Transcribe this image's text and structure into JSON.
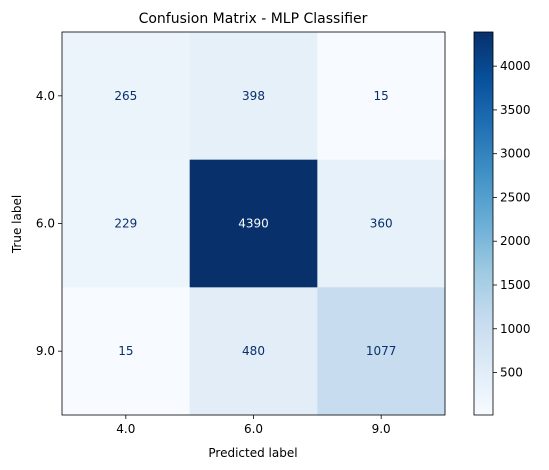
{
  "chart_data": {
    "type": "heatmap",
    "title": "Confusion Matrix - MLP Classifier",
    "xlabel": "Predicted label",
    "ylabel": "True label",
    "x_categories": [
      "4.0",
      "6.0",
      "9.0"
    ],
    "y_categories": [
      "4.0",
      "6.0",
      "9.0"
    ],
    "values": [
      [
        265,
        398,
        15
      ],
      [
        229,
        4390,
        360
      ],
      [
        15,
        480,
        1077
      ]
    ],
    "colormap": "Blues",
    "colorbar": {
      "range": [
        15,
        4390
      ],
      "ticks": [
        500,
        1000,
        1500,
        2000,
        2500,
        3000,
        3500,
        4000
      ]
    },
    "colors": {
      "low": "#f7fbff",
      "high": "#08306b",
      "text_on_light": "#08306b",
      "text_on_dark": "#f7fbff"
    }
  }
}
